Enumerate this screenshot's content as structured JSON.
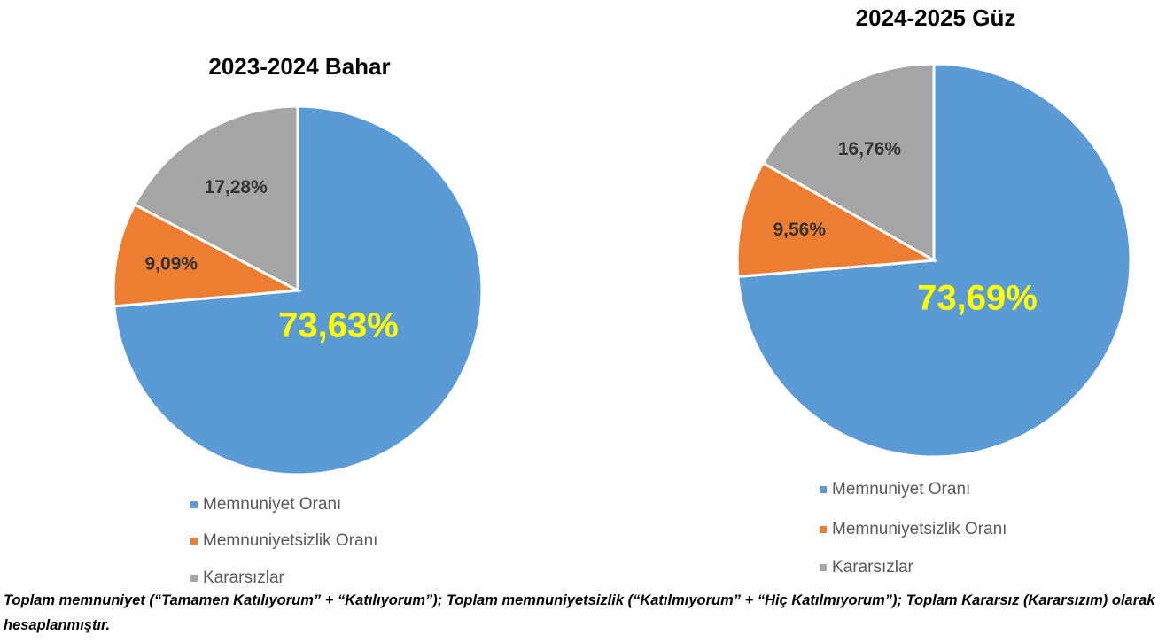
{
  "chart_data": [
    {
      "type": "pie",
      "title": "2023-2024 Bahar",
      "categories": [
        "Memnuniyet Oranı",
        "Memnuniyetsizlik Oranı",
        "Kararsızlar"
      ],
      "values": [
        73.63,
        9.09,
        17.28
      ],
      "value_labels": [
        "73,63%",
        "9,09%",
        "17,28%"
      ],
      "colors": [
        "#5b9bd5",
        "#ed7d31",
        "#a5a5a5"
      ]
    },
    {
      "type": "pie",
      "title": "2024-2025 Güz",
      "categories": [
        "Memnuniyet Oranı",
        "Memnuniyetsizlik Oranı",
        "Kararsızlar"
      ],
      "values": [
        73.69,
        9.56,
        16.76
      ],
      "value_labels": [
        "73,69%",
        "9,56%",
        "16,76%"
      ],
      "colors": [
        "#5b9bd5",
        "#ed7d31",
        "#a5a5a5"
      ]
    }
  ],
  "caption": "Toplam memnuniyet (“Tamamen Katılıyorum” + “Katılıyorum”); Toplam memnuniyetsizlik (“Katılmıyorum” + “Hiç Katılmıyorum”); Toplam Kararsız (Kararsızım) olarak hesaplanmıştır."
}
